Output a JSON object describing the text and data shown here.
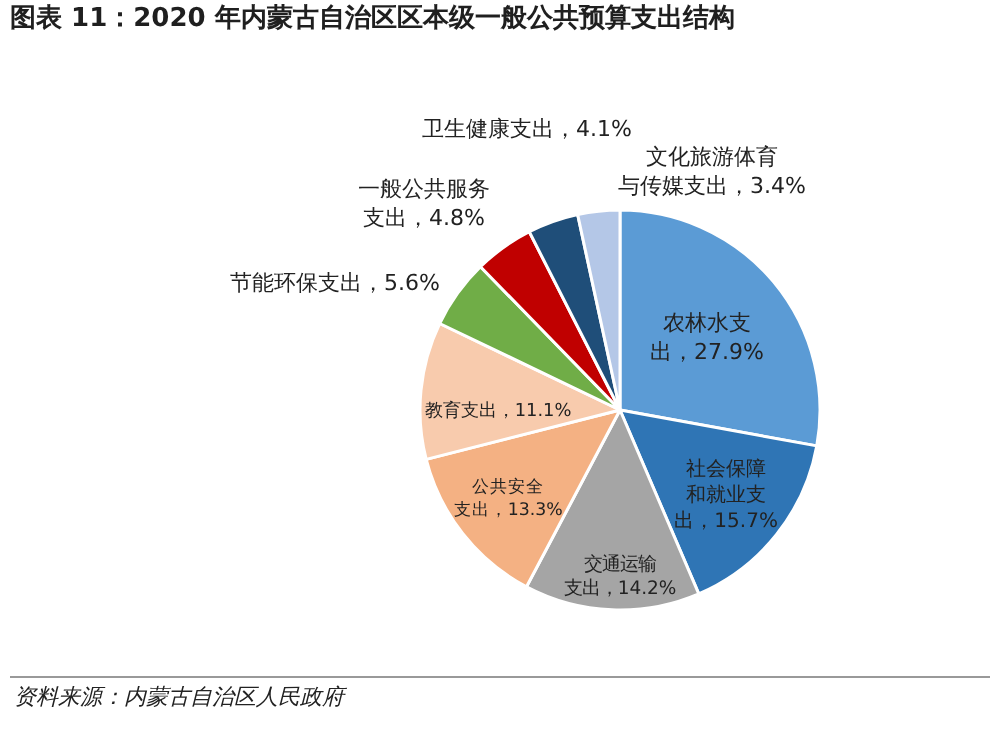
{
  "chart_data": {
    "type": "pie",
    "title": "图表 11：2020 年内蒙古自治区区本级一般公共预算支出结构",
    "categories": [
      "农林水支出",
      "社会保障和就业支出",
      "交通运输支出",
      "公共安全支出",
      "教育支出",
      "节能环保支出",
      "一般公共服务支出",
      "卫生健康支出",
      "文化旅游体育与传媒支出"
    ],
    "values": [
      27.9,
      15.7,
      14.2,
      13.3,
      11.1,
      5.6,
      4.8,
      4.1,
      3.4
    ],
    "value_labels": [
      "27.9%",
      "15.7%",
      "14.2%",
      "13.3%",
      "11.1%",
      "5.6%",
      "4.8%",
      "4.1%",
      "3.4%"
    ],
    "colors": [
      "#5b9bd5",
      "#2f75b5",
      "#a5a5a5",
      "#f4b183",
      "#f8cbad",
      "#70ad47",
      "#c00000",
      "#1f4e79",
      "#b4c7e7"
    ],
    "legend": false,
    "annotations": [
      "资料来源：内蒙古自治区人民政府"
    ]
  }
}
